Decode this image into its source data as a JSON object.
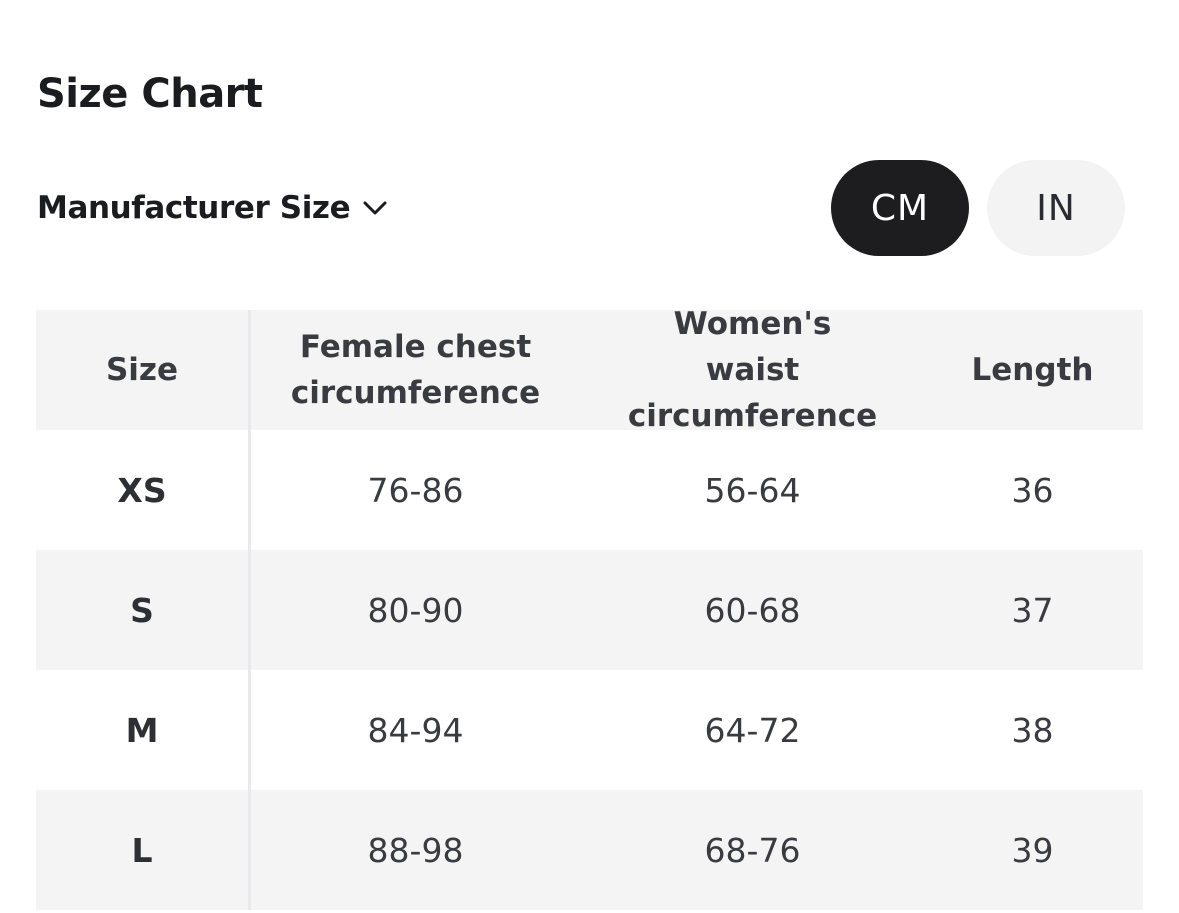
{
  "page": {
    "title": "Size Chart"
  },
  "filter": {
    "label": "Manufacturer Size",
    "icon": "chevron-down-icon"
  },
  "units": {
    "options": [
      "CM",
      "IN"
    ],
    "selected": "CM"
  },
  "colors": {
    "selected_unit_bg": "#1d1d1f",
    "unselected_unit_bg": "#f3f3f4",
    "row_shade": "#f4f4f5",
    "text": "#3a3b40"
  },
  "table": {
    "headers": [
      "Size",
      "Female chest circumference",
      "Women's waist circumference",
      "Length"
    ],
    "rows": [
      [
        "XS",
        "76-86",
        "56-64",
        "36"
      ],
      [
        "S",
        "80-90",
        "60-68",
        "37"
      ],
      [
        "M",
        "84-94",
        "64-72",
        "38"
      ],
      [
        "L",
        "88-98",
        "68-76",
        "39"
      ]
    ]
  }
}
